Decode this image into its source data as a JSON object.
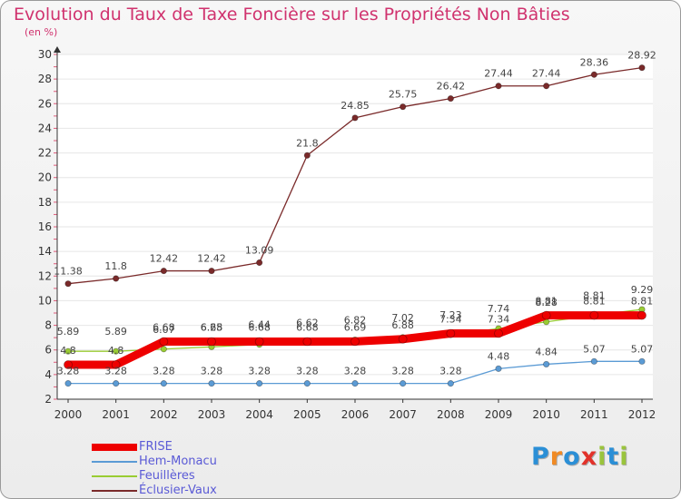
{
  "title": "Evolution du Taux de Taxe Foncière sur les Propriétés Non Bâties",
  "unit_label": "(en %)",
  "logo": {
    "text": "Proxiti",
    "colors": [
      "#2b8fd6",
      "#f08a24",
      "#2b8fd6",
      "#e2322a",
      "#9ac43c",
      "#2b8fd6",
      "#9ac43c"
    ]
  },
  "chart_data": {
    "type": "line",
    "title": "Evolution du Taux de Taxe Foncière sur les Propriétés Non Bâties",
    "ylabel": "(en %)",
    "xlabel": "",
    "ylim": [
      2,
      30
    ],
    "yticks": [
      2,
      4,
      6,
      8,
      10,
      12,
      14,
      16,
      18,
      20,
      22,
      24,
      26,
      28,
      30
    ],
    "categories": [
      "2000",
      "2001",
      "2002",
      "2003",
      "2004",
      "2005",
      "2006",
      "2007",
      "2008",
      "2009",
      "2010",
      "2011",
      "2012"
    ],
    "series": [
      {
        "name": "Éclusier-Vaux",
        "color": "#7a2a2a",
        "values": [
          11.38,
          11.8,
          12.42,
          12.42,
          13.09,
          21.8,
          24.85,
          25.75,
          26.42,
          27.44,
          27.44,
          28.36,
          28.92
        ],
        "labels": [
          "11.38",
          "11.8",
          "12.42",
          "12.42",
          "13.09",
          "21.8",
          "24.85",
          "25.75",
          "26.42",
          "27.44",
          "27.44",
          "28.36",
          "28.92"
        ]
      },
      {
        "name": "Feuillères",
        "color": "#99cc33",
        "values": [
          5.89,
          5.89,
          6.07,
          6.25,
          6.44,
          6.62,
          6.82,
          7.02,
          7.23,
          7.74,
          8.28,
          8.81,
          9.29
        ],
        "labels": [
          "5.89",
          "5.89",
          "6.07",
          "6.25",
          "6.44",
          "6.62",
          "6.82",
          "7.02",
          "7.23",
          "7.74",
          "8.28",
          "8.81",
          "9.29"
        ]
      },
      {
        "name": "FRISE",
        "color": "#ee0000",
        "values": [
          4.8,
          4.8,
          6.68,
          6.68,
          6.68,
          6.68,
          6.69,
          6.88,
          7.34,
          7.34,
          8.81,
          8.81,
          8.81
        ],
        "labels": [
          "4.8",
          "4.8",
          "6.68",
          "6.68",
          "6.68",
          "6.68",
          "6.69",
          "6.88",
          "7.34",
          "7.34",
          "8.81",
          "8.81",
          "8.81"
        ]
      },
      {
        "name": "Hem-Monacu",
        "color": "#5b9bd5",
        "values": [
          3.28,
          3.28,
          3.28,
          3.28,
          3.28,
          3.28,
          3.28,
          3.28,
          3.28,
          4.48,
          4.84,
          5.07,
          5.07
        ],
        "labels": [
          "3.28",
          "3.28",
          "3.28",
          "3.28",
          "3.28",
          "3.28",
          "3.28",
          "3.28",
          "3.28",
          "4.48",
          "4.84",
          "5.07",
          "5.07"
        ]
      }
    ],
    "legend": [
      "FRISE",
      "Hem-Monacu",
      "Feuillères",
      "Éclusier-Vaux"
    ],
    "legend_position": "bottom-left"
  }
}
